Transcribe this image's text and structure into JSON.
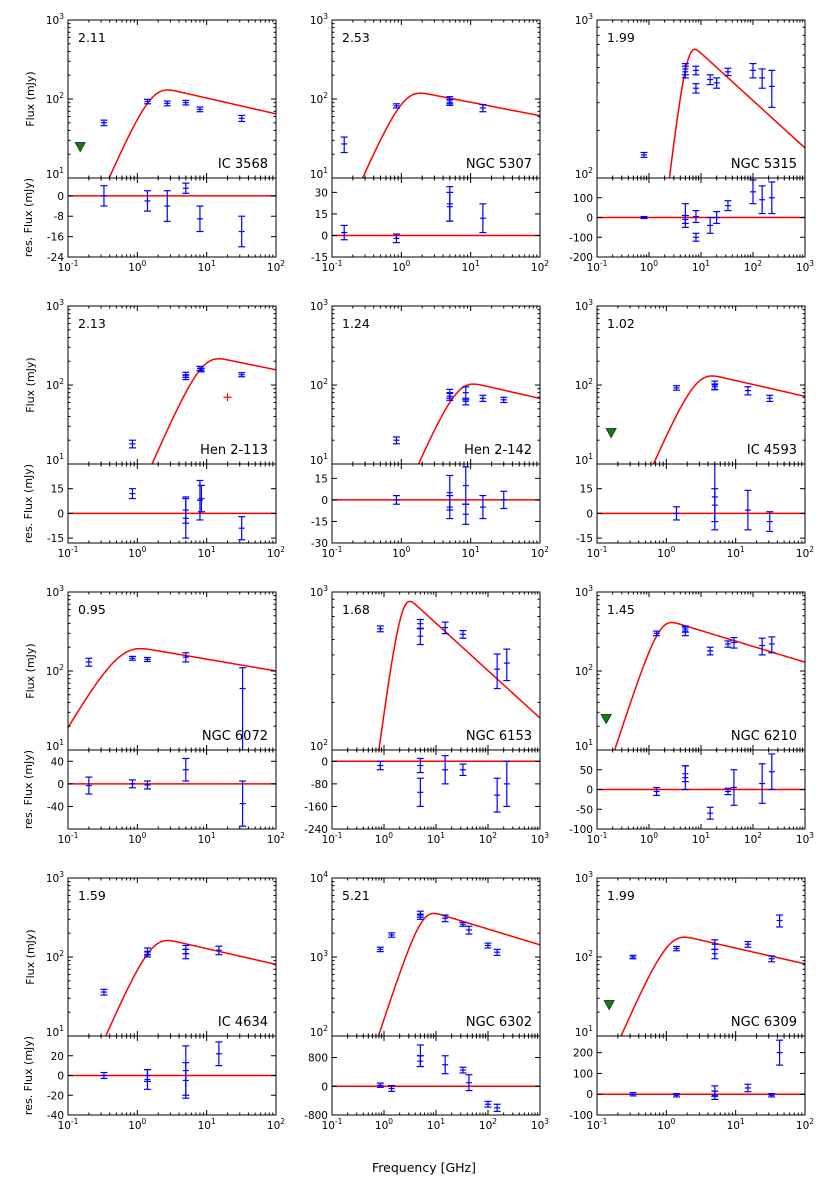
{
  "figure": {
    "xlabel": "Frequency [GHz]",
    "flux_ylabel": "Flux (mJy)",
    "res_ylabel": "res. Flux (mJy)"
  },
  "chart_data": [
    {
      "type": "scatter",
      "object": "IC 3568",
      "label": "2.11",
      "xlim_exp": [
        -1,
        2
      ],
      "ylim_exp": [
        1,
        3
      ],
      "res_ylim": [
        -24,
        7
      ],
      "res_ticks": [
        0,
        -8,
        -16,
        -24
      ],
      "model": {
        "peak_freq": 1.5,
        "peak_flux": 95,
        "spectral_index": -0.2,
        "low_slope": 2
      },
      "points": [
        {
          "f": 0.33,
          "s": 50,
          "e": 4
        },
        {
          "f": 1.4,
          "s": 93,
          "e": 6
        },
        {
          "f": 2.7,
          "s": 88,
          "e": 6
        },
        {
          "f": 5.0,
          "s": 90,
          "e": 6
        },
        {
          "f": 8.0,
          "s": 74,
          "e": 5
        },
        {
          "f": 32,
          "s": 57,
          "e": 5
        }
      ],
      "upper_limits": [
        {
          "f": 0.15,
          "s": 25
        }
      ],
      "outliers": [],
      "residuals": [
        {
          "f": 0.33,
          "r": 0,
          "e": 4
        },
        {
          "f": 1.4,
          "r": -2,
          "e": 4
        },
        {
          "f": 2.7,
          "r": -4,
          "e": 6
        },
        {
          "f": 5.0,
          "r": 3,
          "e": 2
        },
        {
          "f": 8.0,
          "r": -9,
          "e": 5
        },
        {
          "f": 32,
          "r": -14,
          "e": 6
        }
      ]
    },
    {
      "type": "scatter",
      "object": "NGC 5307",
      "label": "2.53",
      "xlim_exp": [
        -1,
        2
      ],
      "ylim_exp": [
        1,
        3
      ],
      "res_ylim": [
        -15,
        40
      ],
      "res_ticks": [
        30,
        15,
        0,
        -15
      ],
      "model": {
        "peak_freq": 1.0,
        "peak_flux": 85,
        "spectral_index": -0.17,
        "low_slope": 2
      },
      "points": [
        {
          "f": 0.15,
          "s": 27,
          "e": 6
        },
        {
          "f": 0.85,
          "s": 82,
          "e": 5
        },
        {
          "f": 5.0,
          "s": 97,
          "e": 10
        },
        {
          "f": 5.0,
          "s": 91,
          "e": 8
        },
        {
          "f": 15,
          "s": 77,
          "e": 8
        }
      ],
      "upper_limits": [],
      "outliers": [],
      "residuals": [
        {
          "f": 0.15,
          "r": 2,
          "e": 5
        },
        {
          "f": 0.85,
          "r": -2,
          "e": 3
        },
        {
          "f": 5.0,
          "r": 22,
          "e": 12
        },
        {
          "f": 5.0,
          "r": 20,
          "e": 10
        },
        {
          "f": 15,
          "r": 12,
          "e": 10
        }
      ]
    },
    {
      "type": "scatter",
      "object": "NGC 5315",
      "label": "1.99",
      "xlim_exp": [
        -1,
        3
      ],
      "ylim_exp": [
        2,
        3
      ],
      "res_ylim": [
        -200,
        200
      ],
      "res_ticks": [
        100,
        0,
        -100,
        -200
      ],
      "model": {
        "peak_freq": 5.0,
        "peak_flux": 480,
        "spectral_index": -0.3,
        "low_slope": 2.8
      },
      "points": [
        {
          "f": 0.8,
          "s": 140,
          "e": 5
        },
        {
          "f": 5.0,
          "s": 490,
          "e": 40
        },
        {
          "f": 5.0,
          "s": 470,
          "e": 40
        },
        {
          "f": 8.0,
          "s": 370,
          "e": 25
        },
        {
          "f": 8.0,
          "s": 480,
          "e": 30
        },
        {
          "f": 15,
          "s": 420,
          "e": 30
        },
        {
          "f": 20,
          "s": 400,
          "e": 30
        },
        {
          "f": 33,
          "s": 470,
          "e": 25
        },
        {
          "f": 100,
          "s": 480,
          "e": 50
        },
        {
          "f": 150,
          "s": 430,
          "e": 60
        },
        {
          "f": 230,
          "s": 380,
          "e": 100
        }
      ],
      "upper_limits": [],
      "outliers": [],
      "residuals": [
        {
          "f": 0.8,
          "r": 0,
          "e": 5
        },
        {
          "f": 5.0,
          "r": 10,
          "e": 60
        },
        {
          "f": 5.0,
          "r": -10,
          "e": 20
        },
        {
          "f": 8.0,
          "r": -100,
          "e": 20
        },
        {
          "f": 8.0,
          "r": 5,
          "e": 30
        },
        {
          "f": 15,
          "r": -40,
          "e": 40
        },
        {
          "f": 20,
          "r": 0,
          "e": 30
        },
        {
          "f": 33,
          "r": 60,
          "e": 25
        },
        {
          "f": 100,
          "r": 130,
          "e": 60
        },
        {
          "f": 150,
          "r": 90,
          "e": 70
        },
        {
          "f": 230,
          "r": 100,
          "e": 80
        }
      ]
    },
    {
      "type": "scatter",
      "object": "Hen 2-113",
      "label": "2.13",
      "xlim_exp": [
        -1,
        2
      ],
      "ylim_exp": [
        1,
        3
      ],
      "res_ylim": [
        -18,
        30
      ],
      "res_ticks": [
        15,
        0,
        -15
      ],
      "model": {
        "peak_freq": 8.0,
        "peak_flux": 155,
        "spectral_index": -0.18,
        "low_slope": 2
      },
      "points": [
        {
          "f": 0.85,
          "s": 18,
          "e": 2
        },
        {
          "f": 5.0,
          "s": 125,
          "e": 8
        },
        {
          "f": 5.0,
          "s": 135,
          "e": 10
        },
        {
          "f": 8.0,
          "s": 162,
          "e": 10
        },
        {
          "f": 8.4,
          "s": 155,
          "e": 8
        },
        {
          "f": 32,
          "s": 135,
          "e": 8
        }
      ],
      "upper_limits": [],
      "outliers": [
        {
          "f": 20,
          "s": 70,
          "e": 4
        }
      ],
      "residuals": [
        {
          "f": 0.85,
          "r": 12,
          "e": 3
        },
        {
          "f": 5.0,
          "r": -3,
          "e": 12
        },
        {
          "f": 5.0,
          "r": 2,
          "e": 8
        },
        {
          "f": 8.0,
          "r": 8,
          "e": 12
        },
        {
          "f": 8.4,
          "r": 9,
          "e": 8
        },
        {
          "f": 32,
          "r": -9,
          "e": 7
        }
      ]
    },
    {
      "type": "scatter",
      "object": "Hen 2-142",
      "label": "1.24",
      "xlim_exp": [
        -1,
        2
      ],
      "ylim_exp": [
        1,
        3
      ],
      "res_ylim": [
        -30,
        25
      ],
      "res_ticks": [
        15,
        0,
        -15,
        -30
      ],
      "model": {
        "peak_freq": 6.0,
        "peak_flux": 75,
        "spectral_index": -0.2,
        "low_slope": 2
      },
      "points": [
        {
          "f": 0.85,
          "s": 20,
          "e": 2
        },
        {
          "f": 5.0,
          "s": 78,
          "e": 10
        },
        {
          "f": 5.0,
          "s": 72,
          "e": 8
        },
        {
          "f": 8.5,
          "s": 80,
          "e": 15
        },
        {
          "f": 8.5,
          "s": 62,
          "e": 6
        },
        {
          "f": 15,
          "s": 68,
          "e": 6
        },
        {
          "f": 30,
          "s": 65,
          "e": 5
        }
      ],
      "upper_limits": [],
      "outliers": [],
      "residuals": [
        {
          "f": 0.85,
          "r": 0,
          "e": 3
        },
        {
          "f": 5.0,
          "r": 5,
          "e": 12
        },
        {
          "f": 5.0,
          "r": -5,
          "e": 8
        },
        {
          "f": 8.5,
          "r": 10,
          "e": 13
        },
        {
          "f": 8.5,
          "r": -10,
          "e": 7
        },
        {
          "f": 15,
          "r": -5,
          "e": 8
        },
        {
          "f": 30,
          "r": 0,
          "e": 6
        }
      ]
    },
    {
      "type": "scatter",
      "object": "IC 4593",
      "label": "1.02",
      "xlim_exp": [
        -1,
        2
      ],
      "ylim_exp": [
        1,
        3
      ],
      "res_ylim": [
        -18,
        30
      ],
      "res_ticks": [
        15,
        0,
        -15
      ],
      "model": {
        "peak_freq": 2.5,
        "peak_flux": 95,
        "spectral_index": -0.2,
        "low_slope": 2
      },
      "points": [
        {
          "f": 1.4,
          "s": 92,
          "e": 6
        },
        {
          "f": 5.0,
          "s": 100,
          "e": 12
        },
        {
          "f": 5.0,
          "s": 95,
          "e": 8
        },
        {
          "f": 15,
          "s": 85,
          "e": 10
        },
        {
          "f": 31,
          "s": 68,
          "e": 6
        }
      ],
      "upper_limits": [
        {
          "f": 0.16,
          "s": 25
        }
      ],
      "outliers": [],
      "residuals": [
        {
          "f": 1.4,
          "r": 0,
          "e": 4
        },
        {
          "f": 5.0,
          "r": 10,
          "e": 20
        },
        {
          "f": 5.0,
          "r": 5,
          "e": 10
        },
        {
          "f": 15,
          "r": 2,
          "e": 12
        },
        {
          "f": 31,
          "r": -5,
          "e": 6
        }
      ]
    },
    {
      "type": "scatter",
      "object": "NGC 6072",
      "label": "0.95",
      "xlim_exp": [
        -1,
        2
      ],
      "ylim_exp": [
        1,
        3
      ],
      "res_ylim": [
        -80,
        60
      ],
      "res_ticks": [
        40,
        0,
        -40
      ],
      "model": {
        "peak_freq": 0.5,
        "peak_flux": 140,
        "spectral_index": -0.15,
        "low_slope": 1.5
      },
      "points": [
        {
          "f": 0.2,
          "s": 130,
          "e": 15
        },
        {
          "f": 0.85,
          "s": 145,
          "e": 8
        },
        {
          "f": 1.4,
          "s": 140,
          "e": 8
        },
        {
          "f": 5.0,
          "s": 150,
          "e": 20
        },
        {
          "f": 33,
          "s": 60,
          "e": 50
        }
      ],
      "upper_limits": [],
      "outliers": [],
      "residuals": [
        {
          "f": 0.2,
          "r": -3,
          "e": 15
        },
        {
          "f": 0.85,
          "r": 0,
          "e": 7
        },
        {
          "f": 1.4,
          "r": -2,
          "e": 7
        },
        {
          "f": 5.0,
          "r": 25,
          "e": 20
        },
        {
          "f": 33,
          "r": -35,
          "e": 40
        }
      ]
    },
    {
      "type": "scatter",
      "object": "NGC 6153",
      "label": "1.68",
      "xlim_exp": [
        -1,
        3
      ],
      "ylim_exp": [
        2,
        3
      ],
      "res_ylim": [
        -240,
        40
      ],
      "res_ticks": [
        0,
        -80,
        -160,
        -240
      ],
      "model": {
        "peak_freq": 2.0,
        "peak_flux": 650,
        "spectral_index": -0.3,
        "low_slope": 2.5
      },
      "points": [
        {
          "f": 0.85,
          "s": 585,
          "e": 25
        },
        {
          "f": 5.0,
          "s": 630,
          "e": 40
        },
        {
          "f": 5.0,
          "s": 525,
          "e": 60
        },
        {
          "f": 15,
          "s": 595,
          "e": 50
        },
        {
          "f": 33,
          "s": 540,
          "e": 30
        },
        {
          "f": 150,
          "s": 325,
          "e": 80
        },
        {
          "f": 230,
          "s": 355,
          "e": 80
        }
      ],
      "upper_limits": [],
      "outliers": [],
      "residuals": [
        {
          "f": 0.85,
          "r": -15,
          "e": 15
        },
        {
          "f": 5.0,
          "r": -15,
          "e": 25
        },
        {
          "f": 5.0,
          "r": -110,
          "e": 50
        },
        {
          "f": 15,
          "r": -30,
          "e": 50
        },
        {
          "f": 33,
          "r": -30,
          "e": 20
        },
        {
          "f": 150,
          "r": -120,
          "e": 60
        },
        {
          "f": 230,
          "r": -80,
          "e": 80
        }
      ]
    },
    {
      "type": "scatter",
      "object": "NGC 6210",
      "label": "1.45",
      "xlim_exp": [
        -1,
        3
      ],
      "ylim_exp": [
        1,
        3
      ],
      "res_ylim": [
        -100,
        100
      ],
      "res_ticks": [
        50,
        0,
        -50,
        -100
      ],
      "model": {
        "peak_freq": 1.5,
        "peak_flux": 300,
        "spectral_index": -0.2,
        "low_slope": 2
      },
      "points": [
        {
          "f": 1.4,
          "s": 300,
          "e": 20
        },
        {
          "f": 5.0,
          "s": 320,
          "e": 40
        },
        {
          "f": 5.0,
          "s": 340,
          "e": 30
        },
        {
          "f": 15,
          "s": 180,
          "e": 20
        },
        {
          "f": 33,
          "s": 220,
          "e": 20
        },
        {
          "f": 43,
          "s": 230,
          "e": 35
        },
        {
          "f": 150,
          "s": 210,
          "e": 50
        },
        {
          "f": 230,
          "s": 220,
          "e": 50
        }
      ],
      "upper_limits": [
        {
          "f": 0.15,
          "s": 25
        }
      ],
      "outliers": [],
      "residuals": [
        {
          "f": 1.4,
          "r": -5,
          "e": 10
        },
        {
          "f": 5.0,
          "r": 30,
          "e": 30
        },
        {
          "f": 5.0,
          "r": 40,
          "e": 20
        },
        {
          "f": 15,
          "r": -60,
          "e": 15
        },
        {
          "f": 33,
          "r": -5,
          "e": 8
        },
        {
          "f": 43,
          "r": 5,
          "e": 45
        },
        {
          "f": 150,
          "r": 15,
          "e": 50
        },
        {
          "f": 230,
          "r": 45,
          "e": 45
        }
      ]
    },
    {
      "type": "scatter",
      "object": "IC 4634",
      "label": "1.59",
      "xlim_exp": [
        -1,
        2
      ],
      "ylim_exp": [
        1,
        3
      ],
      "res_ylim": [
        -40,
        40
      ],
      "res_ticks": [
        20,
        0,
        -20,
        -40
      ],
      "model": {
        "peak_freq": 1.5,
        "peak_flux": 118,
        "spectral_index": -0.2,
        "low_slope": 2
      },
      "points": [
        {
          "f": 0.33,
          "s": 36,
          "e": 3
        },
        {
          "f": 1.4,
          "s": 118,
          "e": 12
        },
        {
          "f": 1.4,
          "s": 108,
          "e": 8
        },
        {
          "f": 5.0,
          "s": 125,
          "e": 15
        },
        {
          "f": 5.0,
          "s": 110,
          "e": 15
        },
        {
          "f": 15,
          "s": 122,
          "e": 15
        }
      ],
      "upper_limits": [],
      "outliers": [],
      "residuals": [
        {
          "f": 0.33,
          "r": 0,
          "e": 3
        },
        {
          "f": 1.4,
          "r": -4,
          "e": 10
        },
        {
          "f": 1.4,
          "r": 0,
          "e": 6
        },
        {
          "f": 5.0,
          "r": 5,
          "e": 25
        },
        {
          "f": 5.0,
          "r": -5,
          "e": 18
        },
        {
          "f": 15,
          "r": 22,
          "e": 12
        }
      ]
    },
    {
      "type": "scatter",
      "object": "NGC 6302",
      "label": "5.21",
      "xlim_exp": [
        -1,
        3
      ],
      "ylim_exp": [
        2,
        4
      ],
      "res_ylim": [
        -800,
        1400
      ],
      "res_ticks": [
        800,
        0,
        -800
      ],
      "model": {
        "peak_freq": 5.0,
        "peak_flux": 2600,
        "spectral_index": -0.2,
        "low_slope": 2
      },
      "points": [
        {
          "f": 0.85,
          "s": 1250,
          "e": 80
        },
        {
          "f": 1.4,
          "s": 1900,
          "e": 120
        },
        {
          "f": 5.0,
          "s": 3500,
          "e": 300
        },
        {
          "f": 5.0,
          "s": 3200,
          "e": 200
        },
        {
          "f": 15,
          "s": 3100,
          "e": 300
        },
        {
          "f": 33,
          "s": 2600,
          "e": 150
        },
        {
          "f": 43,
          "s": 2200,
          "e": 250
        },
        {
          "f": 100,
          "s": 1400,
          "e": 100
        },
        {
          "f": 150,
          "s": 1150,
          "e": 100
        }
      ],
      "upper_limits": [],
      "outliers": [],
      "residuals": [
        {
          "f": 0.85,
          "r": 30,
          "e": 60
        },
        {
          "f": 1.4,
          "r": -60,
          "e": 80
        },
        {
          "f": 5.0,
          "r": 850,
          "e": 300
        },
        {
          "f": 5.0,
          "r": 700,
          "e": 150
        },
        {
          "f": 15,
          "r": 600,
          "e": 250
        },
        {
          "f": 33,
          "r": 450,
          "e": 80
        },
        {
          "f": 43,
          "r": 100,
          "e": 220
        },
        {
          "f": 100,
          "r": -500,
          "e": 80
        },
        {
          "f": 150,
          "r": -600,
          "e": 100
        }
      ]
    },
    {
      "type": "scatter",
      "object": "NGC 6309",
      "label": "1.99",
      "xlim_exp": [
        -1,
        2
      ],
      "ylim_exp": [
        1,
        3
      ],
      "res_ylim": [
        -100,
        280
      ],
      "res_ticks": [
        200,
        100,
        0,
        -100
      ],
      "model": {
        "peak_freq": 1.0,
        "peak_flux": 130,
        "spectral_index": -0.2,
        "low_slope": 2
      },
      "points": [
        {
          "f": 0.33,
          "s": 100,
          "e": 5
        },
        {
          "f": 1.4,
          "s": 128,
          "e": 8
        },
        {
          "f": 5.0,
          "s": 145,
          "e": 20
        },
        {
          "f": 5.0,
          "s": 110,
          "e": 15
        },
        {
          "f": 15,
          "s": 145,
          "e": 12
        },
        {
          "f": 33,
          "s": 95,
          "e": 8
        },
        {
          "f": 43,
          "s": 290,
          "e": 50
        }
      ],
      "upper_limits": [
        {
          "f": 0.15,
          "s": 25
        }
      ],
      "outliers": [],
      "residuals": [
        {
          "f": 0.33,
          "r": 0,
          "e": 8
        },
        {
          "f": 1.4,
          "r": -5,
          "e": 8
        },
        {
          "f": 5.0,
          "r": 15,
          "e": 25
        },
        {
          "f": 5.0,
          "r": -5,
          "e": 20
        },
        {
          "f": 15,
          "r": 30,
          "e": 18
        },
        {
          "f": 33,
          "r": -5,
          "e": 8
        },
        {
          "f": 43,
          "r": 200,
          "e": 60
        }
      ]
    }
  ]
}
